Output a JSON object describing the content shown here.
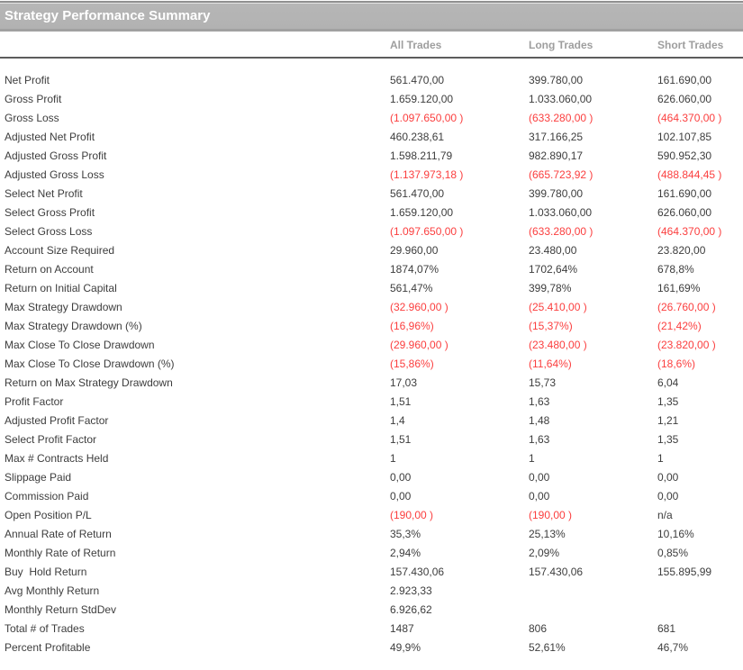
{
  "title": "Strategy Performance Summary",
  "columns": [
    "All Trades",
    "Long Trades",
    "Short Trades"
  ],
  "colors": {
    "negative_value": "#fb3e3e",
    "header_text": "#9e9e9e",
    "body_text": "#3d3d3d",
    "title_bar_bg": "#b3b3b3",
    "title_text": "#ffffff",
    "divider": "#5c5c5c"
  },
  "table": {
    "rows": [
      {
        "label": "Net Profit",
        "cells": [
          {
            "t": "561.470,00",
            "neg": false
          },
          {
            "t": "399.780,00",
            "neg": false
          },
          {
            "t": "161.690,00",
            "neg": false
          }
        ]
      },
      {
        "label": "Gross Profit",
        "cells": [
          {
            "t": "1.659.120,00",
            "neg": false
          },
          {
            "t": "1.033.060,00",
            "neg": false
          },
          {
            "t": "626.060,00",
            "neg": false
          }
        ]
      },
      {
        "label": "Gross Loss",
        "cells": [
          {
            "t": "(1.097.650,00 )",
            "neg": true
          },
          {
            "t": "(633.280,00 )",
            "neg": true
          },
          {
            "t": "(464.370,00 )",
            "neg": true
          }
        ]
      },
      {
        "label": "Adjusted Net Profit",
        "cells": [
          {
            "t": "460.238,61",
            "neg": false
          },
          {
            "t": "317.166,25",
            "neg": false
          },
          {
            "t": "102.107,85",
            "neg": false
          }
        ]
      },
      {
        "label": "Adjusted Gross Profit",
        "cells": [
          {
            "t": "1.598.211,79",
            "neg": false
          },
          {
            "t": "982.890,17",
            "neg": false
          },
          {
            "t": "590.952,30",
            "neg": false
          }
        ]
      },
      {
        "label": "Adjusted Gross Loss",
        "cells": [
          {
            "t": "(1.137.973,18 )",
            "neg": true
          },
          {
            "t": "(665.723,92 )",
            "neg": true
          },
          {
            "t": "(488.844,45 )",
            "neg": true
          }
        ]
      },
      {
        "label": "Select Net Profit",
        "cells": [
          {
            "t": "561.470,00",
            "neg": false
          },
          {
            "t": "399.780,00",
            "neg": false
          },
          {
            "t": "161.690,00",
            "neg": false
          }
        ]
      },
      {
        "label": "Select Gross Profit",
        "cells": [
          {
            "t": "1.659.120,00",
            "neg": false
          },
          {
            "t": "1.033.060,00",
            "neg": false
          },
          {
            "t": "626.060,00",
            "neg": false
          }
        ]
      },
      {
        "label": "Select Gross Loss",
        "cells": [
          {
            "t": "(1.097.650,00 )",
            "neg": true
          },
          {
            "t": "(633.280,00 )",
            "neg": true
          },
          {
            "t": "(464.370,00 )",
            "neg": true
          }
        ]
      },
      {
        "label": "Account Size Required",
        "cells": [
          {
            "t": "29.960,00",
            "neg": false
          },
          {
            "t": "23.480,00",
            "neg": false
          },
          {
            "t": "23.820,00",
            "neg": false
          }
        ]
      },
      {
        "label": "Return on Account",
        "cells": [
          {
            "t": "1874,07%",
            "neg": false
          },
          {
            "t": "1702,64%",
            "neg": false
          },
          {
            "t": "678,8%",
            "neg": false
          }
        ]
      },
      {
        "label": "Return on Initial Capital",
        "cells": [
          {
            "t": "561,47%",
            "neg": false
          },
          {
            "t": "399,78%",
            "neg": false
          },
          {
            "t": "161,69%",
            "neg": false
          }
        ]
      },
      {
        "label": "Max Strategy Drawdown",
        "cells": [
          {
            "t": "(32.960,00 )",
            "neg": true
          },
          {
            "t": "(25.410,00 )",
            "neg": true
          },
          {
            "t": "(26.760,00 )",
            "neg": true
          }
        ]
      },
      {
        "label": "Max Strategy Drawdown (%)",
        "cells": [
          {
            "t": "(16,96%)",
            "neg": true
          },
          {
            "t": "(15,37%)",
            "neg": true
          },
          {
            "t": "(21,42%)",
            "neg": true
          }
        ]
      },
      {
        "label": "Max Close To Close Drawdown",
        "cells": [
          {
            "t": "(29.960,00 )",
            "neg": true
          },
          {
            "t": "(23.480,00 )",
            "neg": true
          },
          {
            "t": "(23.820,00 )",
            "neg": true
          }
        ]
      },
      {
        "label": "Max Close To Close Drawdown (%)",
        "cells": [
          {
            "t": "(15,86%)",
            "neg": true
          },
          {
            "t": "(11,64%)",
            "neg": true
          },
          {
            "t": "(18,6%)",
            "neg": true
          }
        ]
      },
      {
        "label": "Return on Max Strategy Drawdown",
        "cells": [
          {
            "t": "17,03",
            "neg": false
          },
          {
            "t": "15,73",
            "neg": false
          },
          {
            "t": "6,04",
            "neg": false
          }
        ]
      },
      {
        "label": "Profit Factor",
        "cells": [
          {
            "t": "1,51",
            "neg": false
          },
          {
            "t": "1,63",
            "neg": false
          },
          {
            "t": "1,35",
            "neg": false
          }
        ]
      },
      {
        "label": "Adjusted Profit Factor",
        "cells": [
          {
            "t": "1,4",
            "neg": false
          },
          {
            "t": "1,48",
            "neg": false
          },
          {
            "t": "1,21",
            "neg": false
          }
        ]
      },
      {
        "label": "Select Profit Factor",
        "cells": [
          {
            "t": "1,51",
            "neg": false
          },
          {
            "t": "1,63",
            "neg": false
          },
          {
            "t": "1,35",
            "neg": false
          }
        ]
      },
      {
        "label": "Max # Contracts Held",
        "cells": [
          {
            "t": "1",
            "neg": false
          },
          {
            "t": "1",
            "neg": false
          },
          {
            "t": "1",
            "neg": false
          }
        ]
      },
      {
        "label": "Slippage Paid",
        "cells": [
          {
            "t": "0,00",
            "neg": false
          },
          {
            "t": "0,00",
            "neg": false
          },
          {
            "t": "0,00",
            "neg": false
          }
        ]
      },
      {
        "label": "Commission Paid",
        "cells": [
          {
            "t": "0,00",
            "neg": false
          },
          {
            "t": "0,00",
            "neg": false
          },
          {
            "t": "0,00",
            "neg": false
          }
        ]
      },
      {
        "label": "Open Position P/L",
        "cells": [
          {
            "t": "(190,00 )",
            "neg": true
          },
          {
            "t": "(190,00 )",
            "neg": true
          },
          {
            "t": "n/a",
            "neg": false
          }
        ]
      },
      {
        "label": "Annual Rate of Return",
        "cells": [
          {
            "t": "35,3%",
            "neg": false
          },
          {
            "t": "25,13%",
            "neg": false
          },
          {
            "t": "10,16%",
            "neg": false
          }
        ]
      },
      {
        "label": "Monthly Rate of Return",
        "cells": [
          {
            "t": "2,94%",
            "neg": false
          },
          {
            "t": "2,09%",
            "neg": false
          },
          {
            "t": "0,85%",
            "neg": false
          }
        ]
      },
      {
        "label": "Buy  Hold Return",
        "cells": [
          {
            "t": "157.430,06",
            "neg": false
          },
          {
            "t": "157.430,06",
            "neg": false
          },
          {
            "t": "155.895,99",
            "neg": false
          }
        ]
      },
      {
        "label": "Avg Monthly Return",
        "cells": [
          {
            "t": "2.923,33",
            "neg": false
          },
          {
            "t": "",
            "neg": false
          },
          {
            "t": "",
            "neg": false
          }
        ]
      },
      {
        "label": "Monthly Return StdDev",
        "cells": [
          {
            "t": "6.926,62",
            "neg": false
          },
          {
            "t": "",
            "neg": false
          },
          {
            "t": "",
            "neg": false
          }
        ]
      },
      {
        "label": "Total # of Trades",
        "cells": [
          {
            "t": "1487",
            "neg": false
          },
          {
            "t": "806",
            "neg": false
          },
          {
            "t": "681",
            "neg": false
          }
        ]
      },
      {
        "label": "Percent Profitable",
        "cells": [
          {
            "t": "49,9%",
            "neg": false
          },
          {
            "t": "52,61%",
            "neg": false
          },
          {
            "t": "46,7%",
            "neg": false
          }
        ]
      }
    ]
  }
}
